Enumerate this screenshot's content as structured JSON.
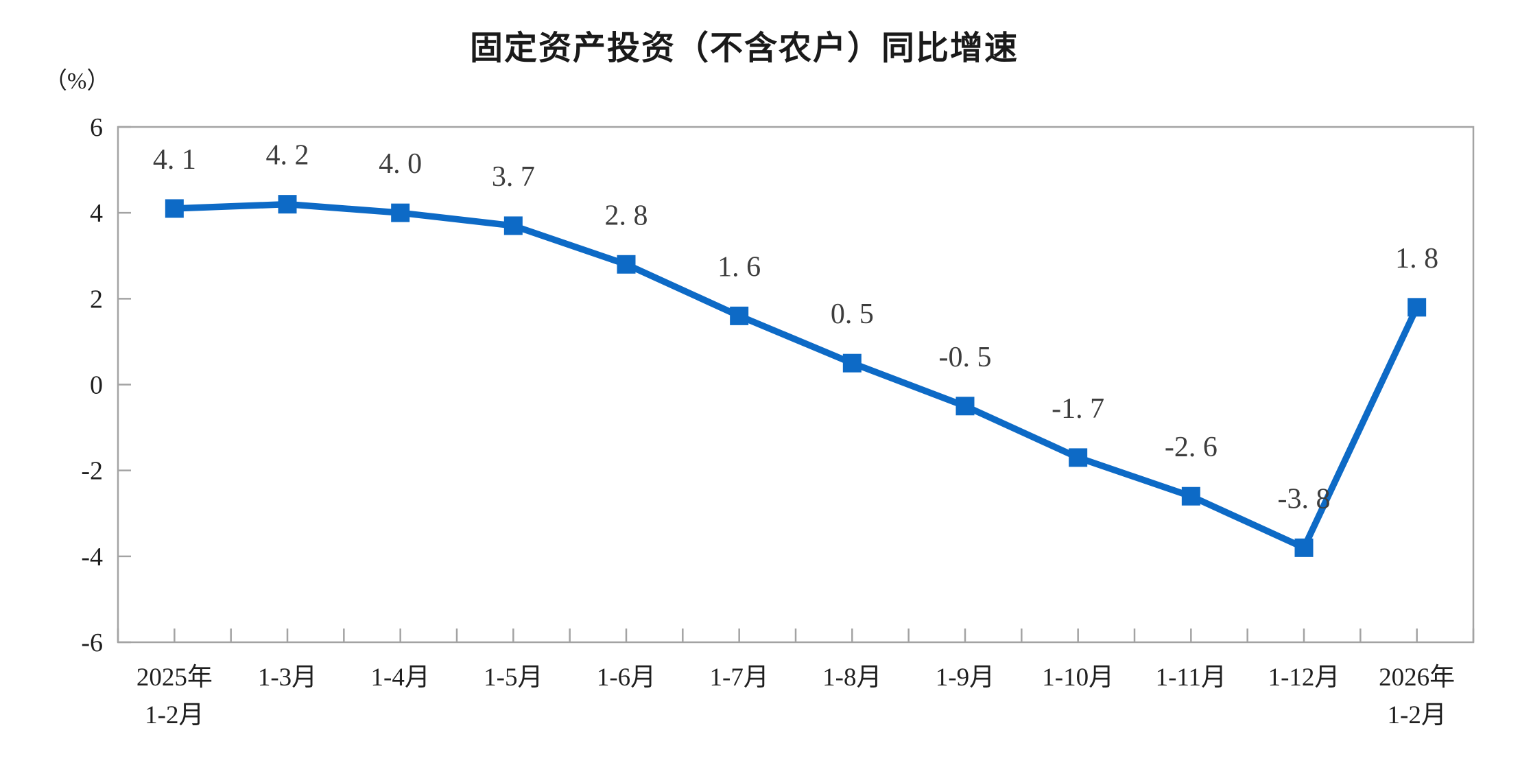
{
  "page": {
    "background": "#ffffff"
  },
  "chart_data": {
    "type": "line",
    "title": "固定资产投资（不含农户）同比增速",
    "unit_label": "（%）",
    "categories": [
      [
        "2025年",
        "1-2月"
      ],
      [
        "1-3月"
      ],
      [
        "1-4月"
      ],
      [
        "1-5月"
      ],
      [
        "1-6月"
      ],
      [
        "1-7月"
      ],
      [
        "1-8月"
      ],
      [
        "1-9月"
      ],
      [
        "1-10月"
      ],
      [
        "1-11月"
      ],
      [
        "1-12月"
      ],
      [
        "2026年",
        "1-2月"
      ]
    ],
    "values": [
      4.1,
      4.2,
      4.0,
      3.7,
      2.8,
      1.6,
      0.5,
      -0.5,
      -1.7,
      -2.6,
      -3.8,
      1.8
    ],
    "point_labels": [
      "4. 1",
      "4. 2",
      "4. 0",
      "3. 7",
      "2. 8",
      "1. 6",
      "0. 5",
      "-0. 5",
      "-1. 7",
      "-2. 6",
      "-3. 8",
      "1. 8"
    ],
    "ylim": [
      -6,
      6
    ],
    "yticks": [
      6,
      4,
      2,
      0,
      -2,
      -4,
      -6
    ],
    "ytick_labels": [
      "6",
      "4",
      "2",
      "0",
      "-2",
      "-4",
      "-6"
    ],
    "grid": false,
    "legend": "none",
    "marker": "square",
    "line_color": "#0d6ac6",
    "axis_color": "#a3a3a3",
    "point_label_color": "#3d3d3d",
    "axis_text_color": "#1f1f1f"
  }
}
